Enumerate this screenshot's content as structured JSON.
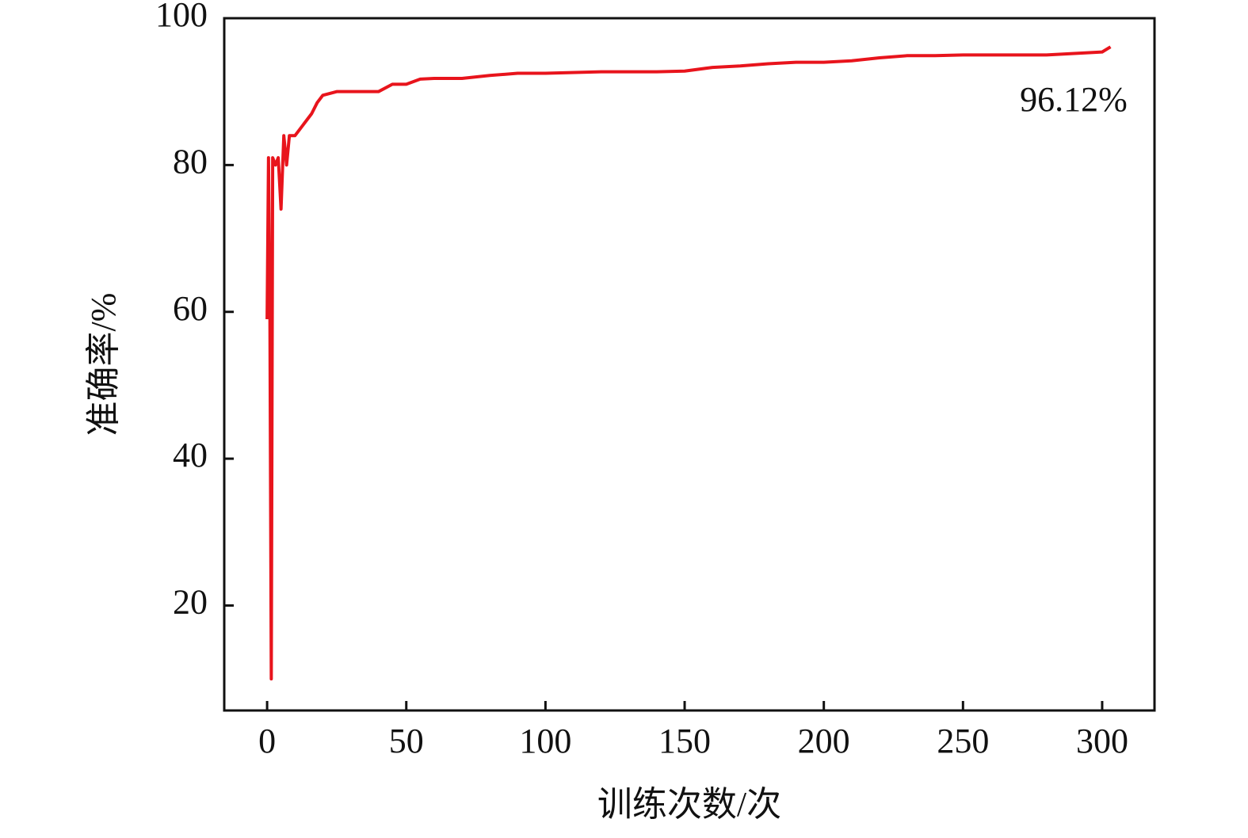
{
  "chart_data": {
    "type": "line",
    "x_label": "训练次数/次",
    "y_label": "准确率/%",
    "annotation": "96.12%",
    "x": [
      0,
      0.5,
      1,
      1.5,
      2,
      3,
      4,
      5,
      6,
      7,
      8,
      10,
      12,
      14,
      16,
      18,
      20,
      25,
      30,
      35,
      40,
      45,
      50,
      55,
      60,
      70,
      80,
      90,
      100,
      120,
      140,
      150,
      160,
      170,
      180,
      190,
      200,
      210,
      220,
      230,
      240,
      250,
      260,
      270,
      280,
      290,
      300,
      303
    ],
    "series": [
      {
        "color": "#e8141c",
        "values": [
          59,
          81,
          60,
          10,
          81,
          80,
          81,
          74,
          84,
          80,
          84,
          84,
          85,
          86,
          87,
          88.5,
          89.5,
          90,
          90,
          90,
          90,
          91,
          91,
          91.7,
          91.8,
          91.8,
          92.2,
          92.5,
          92.5,
          92.7,
          92.7,
          92.8,
          93.3,
          93.5,
          93.8,
          94,
          94,
          94.2,
          94.6,
          94.9,
          94.9,
          95,
          95,
          95,
          95,
          95.2,
          95.4,
          96.1
        ]
      }
    ],
    "xlim": [
      -15.4,
      318.8
    ],
    "ylim": [
      5.7,
      100
    ],
    "xticks": [
      0,
      50,
      100,
      150,
      200,
      250,
      300
    ],
    "yticks": [
      20,
      40,
      60,
      80,
      100
    ]
  }
}
